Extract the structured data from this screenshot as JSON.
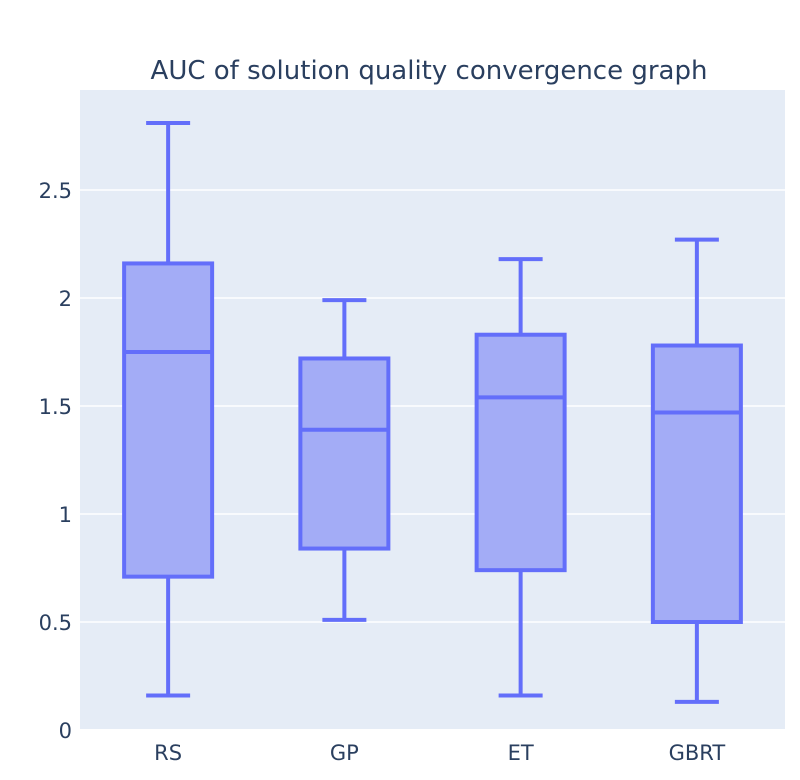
{
  "chart_data": {
    "type": "box",
    "title": "AUC of solution quality convergence graph",
    "xlabel": "",
    "ylabel": "",
    "ylim": [
      0,
      2.9
    ],
    "yticks": [
      0,
      0.5,
      1,
      1.5,
      2,
      2.5
    ],
    "ytick_labels": [
      "0",
      "0.5",
      "1",
      "1.5",
      "2",
      "2.5"
    ],
    "grid": true,
    "colors": {
      "plot_bg": "#e5ecf6",
      "grid": "#ffffff",
      "box_fill": "#a3acf6",
      "box_line": "#636efa",
      "text": "#2a3f5f"
    },
    "categories": [
      "RS",
      "GP",
      "ET",
      "GBRT"
    ],
    "boxes": [
      {
        "name": "RS",
        "min": 0.16,
        "q1": 0.71,
        "median": 1.75,
        "q3": 2.16,
        "max": 2.81
      },
      {
        "name": "GP",
        "min": 0.51,
        "q1": 0.84,
        "median": 1.39,
        "q3": 1.72,
        "max": 1.99
      },
      {
        "name": "ET",
        "min": 0.16,
        "q1": 0.74,
        "median": 1.54,
        "q3": 1.83,
        "max": 2.18
      },
      {
        "name": "GBRT",
        "min": 0.13,
        "q1": 0.5,
        "median": 1.47,
        "q3": 1.78,
        "max": 2.27
      }
    ]
  }
}
